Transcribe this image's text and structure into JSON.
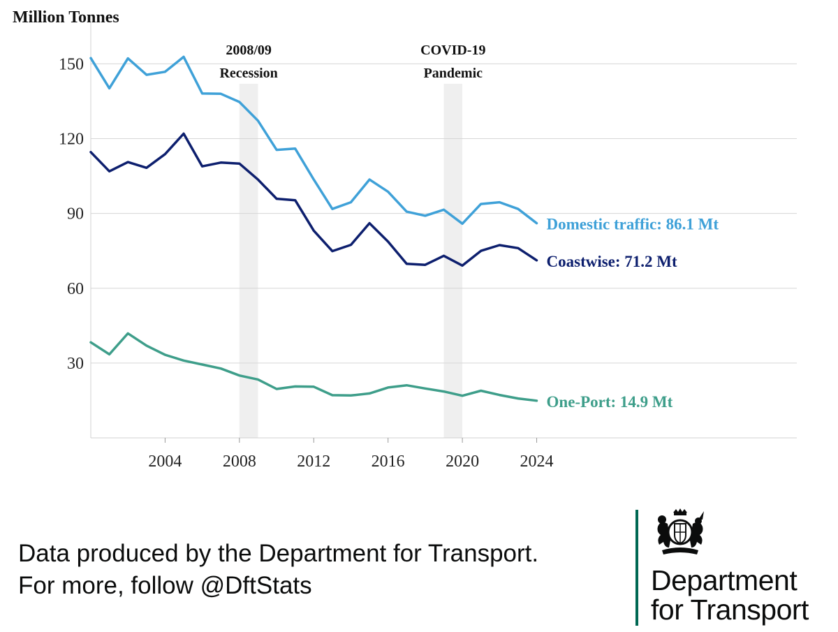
{
  "chart_data": {
    "type": "line",
    "ylabel": "Million Tonnes",
    "xlim": [
      2000,
      2038
    ],
    "ylim": [
      0,
      170
    ],
    "x_ticks": [
      2004,
      2008,
      2012,
      2016,
      2020,
      2024
    ],
    "y_ticks": [
      30,
      60,
      90,
      120,
      150
    ],
    "grid": "horizontal",
    "x": [
      2000,
      2001,
      2002,
      2003,
      2004,
      2005,
      2006,
      2007,
      2008,
      2009,
      2010,
      2011,
      2012,
      2013,
      2014,
      2015,
      2016,
      2017,
      2018,
      2019,
      2020,
      2021,
      2022,
      2023,
      2024
    ],
    "series": [
      {
        "name": "Domestic traffic",
        "label": "Domestic traffic: 86.1 Mt",
        "color": "#3fa1d8",
        "values": [
          152.3,
          140.2,
          152.2,
          145.6,
          146.8,
          152.8,
          138.1,
          138.0,
          134.7,
          127.2,
          115.5,
          116.0,
          103.6,
          91.8,
          94.5,
          103.6,
          98.7,
          90.7,
          89.1,
          91.5,
          85.9,
          93.8,
          94.5,
          91.8,
          86.1
        ]
      },
      {
        "name": "Coastwise",
        "label": "Coastwise: 71.2 Mt",
        "color": "#0d1f6e",
        "values": [
          114.6,
          106.9,
          110.6,
          108.3,
          113.8,
          122.0,
          108.9,
          110.4,
          110.0,
          103.6,
          95.9,
          95.3,
          83.1,
          74.9,
          77.4,
          86.1,
          78.7,
          69.8,
          69.4,
          73.0,
          69.1,
          75.0,
          77.3,
          76.1,
          71.2
        ]
      },
      {
        "name": "One-Port",
        "label": "One-Port: 14.9 Mt",
        "color": "#3e9e8a",
        "values": [
          38.3,
          33.5,
          41.9,
          37.0,
          33.3,
          31.0,
          29.4,
          27.8,
          25.0,
          23.4,
          19.6,
          20.6,
          20.5,
          17.1,
          17.0,
          17.8,
          20.2,
          21.1,
          19.8,
          18.6,
          16.9,
          18.9,
          17.2,
          15.8,
          14.9
        ]
      }
    ],
    "shaded_periods": [
      {
        "label_line1": "2008/09",
        "label_line2": "Recession",
        "from": 2008,
        "to": 2009,
        "color": "#efefef"
      },
      {
        "label_line1": "COVID-19",
        "label_line2": "Pandemic",
        "from": 2019,
        "to": 2020,
        "color": "#efefef"
      }
    ]
  },
  "footer": {
    "line1": "Data produced by the Department for Transport.",
    "line2": "For more, follow @DftStats"
  },
  "logo": {
    "line1": "Department",
    "line2": "for Transport",
    "crest_icon": "royal-coat-of-arms-icon",
    "rule_color": "#006853"
  }
}
